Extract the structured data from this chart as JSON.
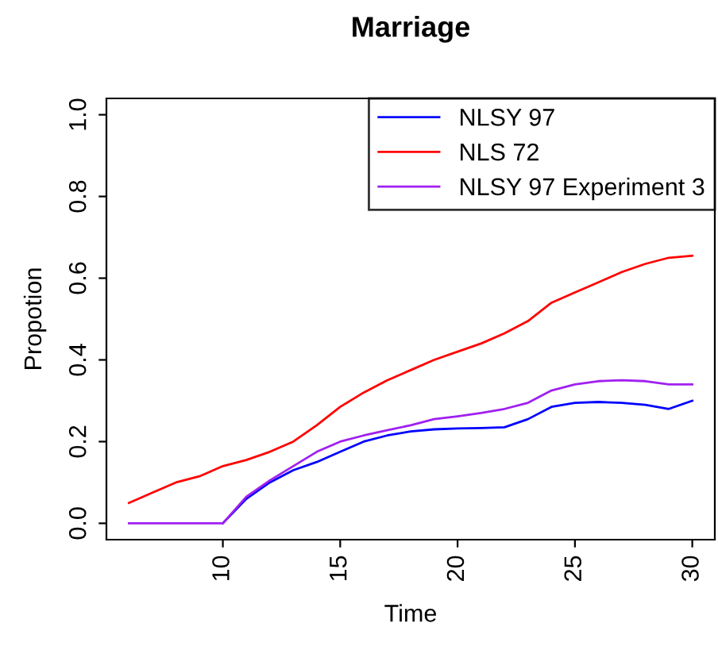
{
  "chart_data": {
    "type": "line",
    "title": "Marriage",
    "xlabel": "Time",
    "ylabel": "Propotion",
    "x": [
      6,
      7,
      8,
      9,
      10,
      11,
      12,
      13,
      14,
      15,
      16,
      17,
      18,
      19,
      20,
      21,
      22,
      23,
      24,
      25,
      26,
      27,
      28,
      29,
      30
    ],
    "series": [
      {
        "name": "NLSY 97",
        "color": "#0000ff",
        "values": [
          null,
          null,
          null,
          null,
          0,
          0.06,
          0.1,
          0.13,
          0.15,
          0.175,
          0.2,
          0.215,
          0.225,
          0.23,
          0.232,
          0.233,
          0.235,
          0.255,
          0.285,
          0.295,
          0.297,
          0.295,
          0.29,
          0.28,
          0.3
        ]
      },
      {
        "name": "NLS 72",
        "color": "#ff0000",
        "values": [
          0.05,
          0.075,
          0.1,
          0.115,
          0.14,
          0.155,
          0.175,
          0.2,
          0.24,
          0.285,
          0.32,
          0.35,
          0.375,
          0.4,
          0.42,
          0.44,
          0.465,
          0.495,
          0.54,
          0.565,
          0.59,
          0.615,
          0.635,
          0.65,
          0.655
        ]
      },
      {
        "name": "NLSY 97 Experiment 3",
        "color": "#a020f0",
        "values": [
          0,
          0,
          0,
          0,
          0,
          0.065,
          0.105,
          0.14,
          0.175,
          0.2,
          0.215,
          0.228,
          0.24,
          0.255,
          0.262,
          0.27,
          0.28,
          0.295,
          0.325,
          0.34,
          0.348,
          0.35,
          0.348,
          0.34,
          0.34
        ]
      }
    ],
    "xlim": [
      5.04,
      30.96
    ],
    "ylim": [
      -0.04,
      1.04
    ],
    "xticks": [
      10,
      15,
      20,
      25,
      30
    ],
    "yticks": [
      {
        "value": 0,
        "label": "0.0"
      },
      {
        "value": 0.2,
        "label": "0.2"
      },
      {
        "value": 0.4,
        "label": "0.4"
      },
      {
        "value": 0.6,
        "label": "0.6"
      },
      {
        "value": 0.8,
        "label": "0.8"
      },
      {
        "value": 1,
        "label": "1.0"
      }
    ],
    "legend": "top right",
    "grid": false,
    "marker": "none",
    "line_style": "solid"
  }
}
